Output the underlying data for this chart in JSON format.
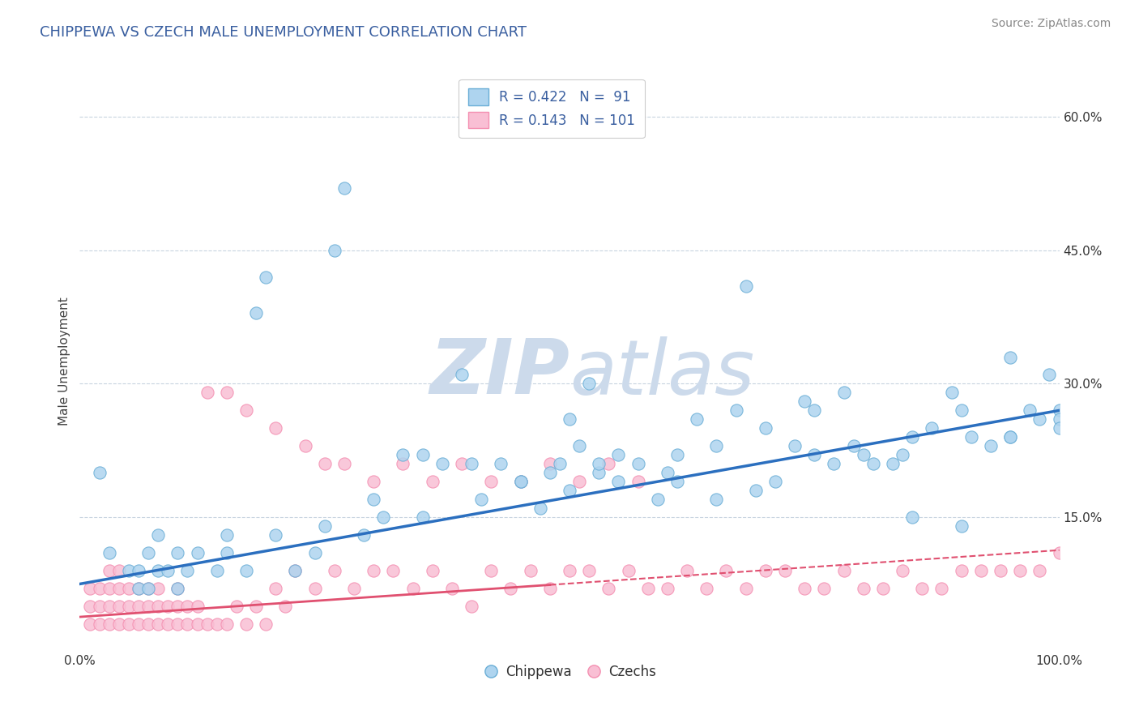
{
  "title": "CHIPPEWA VS CZECH MALE UNEMPLOYMENT CORRELATION CHART",
  "source_text": "Source: ZipAtlas.com",
  "ylabel": "Male Unemployment",
  "xlim": [
    0.0,
    1.0
  ],
  "ylim": [
    0.0,
    0.65
  ],
  "y_tick_labels": [
    "15.0%",
    "30.0%",
    "45.0%",
    "60.0%"
  ],
  "y_ticks": [
    0.15,
    0.3,
    0.45,
    0.6
  ],
  "legend_line1": "R = 0.422   N =  91",
  "legend_line2": "R = 0.143   N = 101",
  "chippewa_marker_face": "#aed4ef",
  "chippewa_marker_edge": "#6aaed6",
  "czech_marker_face": "#f9bfd4",
  "czech_marker_edge": "#f48fb1",
  "trend_chippewa_color": "#2b6fbf",
  "trend_czech_solid_color": "#e05070",
  "trend_czech_dash_color": "#e05070",
  "watermark_color": "#ccdaeb",
  "background_color": "#ffffff",
  "grid_color": "#c8d4e0",
  "chippewa_x": [
    0.02,
    0.03,
    0.05,
    0.06,
    0.07,
    0.07,
    0.08,
    0.09,
    0.1,
    0.11,
    0.12,
    0.14,
    0.15,
    0.17,
    0.18,
    0.19,
    0.2,
    0.22,
    0.24,
    0.26,
    0.27,
    0.29,
    0.31,
    0.33,
    0.35,
    0.37,
    0.39,
    0.41,
    0.43,
    0.45,
    0.47,
    0.49,
    0.5,
    0.51,
    0.52,
    0.53,
    0.55,
    0.57,
    0.59,
    0.61,
    0.63,
    0.65,
    0.67,
    0.69,
    0.71,
    0.73,
    0.75,
    0.77,
    0.79,
    0.81,
    0.83,
    0.85,
    0.87,
    0.89,
    0.91,
    0.93,
    0.95,
    0.97,
    0.99,
    1.0,
    0.48,
    0.53,
    0.61,
    0.68,
    0.74,
    0.78,
    0.84,
    0.9,
    0.95,
    0.98,
    1.0,
    0.3,
    0.4,
    0.5,
    0.6,
    0.7,
    0.8,
    0.9,
    1.0,
    0.35,
    0.45,
    0.55,
    0.65,
    0.75,
    0.85,
    0.95,
    0.25,
    0.15,
    0.1,
    0.08,
    0.06
  ],
  "chippewa_y": [
    0.2,
    0.11,
    0.09,
    0.07,
    0.07,
    0.11,
    0.09,
    0.09,
    0.07,
    0.09,
    0.11,
    0.09,
    0.11,
    0.09,
    0.38,
    0.42,
    0.13,
    0.09,
    0.11,
    0.45,
    0.52,
    0.13,
    0.15,
    0.22,
    0.15,
    0.21,
    0.31,
    0.17,
    0.21,
    0.19,
    0.16,
    0.21,
    0.18,
    0.23,
    0.3,
    0.2,
    0.19,
    0.21,
    0.17,
    0.19,
    0.26,
    0.23,
    0.27,
    0.18,
    0.19,
    0.23,
    0.27,
    0.21,
    0.23,
    0.21,
    0.21,
    0.24,
    0.25,
    0.29,
    0.24,
    0.23,
    0.24,
    0.27,
    0.31,
    0.27,
    0.2,
    0.21,
    0.22,
    0.41,
    0.28,
    0.29,
    0.22,
    0.27,
    0.33,
    0.26,
    0.26,
    0.17,
    0.21,
    0.26,
    0.2,
    0.25,
    0.22,
    0.14,
    0.25,
    0.22,
    0.19,
    0.22,
    0.17,
    0.22,
    0.15,
    0.24,
    0.14,
    0.13,
    0.11,
    0.13,
    0.09
  ],
  "czech_x": [
    0.01,
    0.01,
    0.01,
    0.02,
    0.02,
    0.02,
    0.03,
    0.03,
    0.03,
    0.03,
    0.04,
    0.04,
    0.04,
    0.04,
    0.05,
    0.05,
    0.05,
    0.06,
    0.06,
    0.06,
    0.07,
    0.07,
    0.07,
    0.08,
    0.08,
    0.08,
    0.09,
    0.09,
    0.1,
    0.1,
    0.1,
    0.11,
    0.11,
    0.12,
    0.12,
    0.13,
    0.14,
    0.15,
    0.16,
    0.17,
    0.18,
    0.19,
    0.2,
    0.21,
    0.22,
    0.24,
    0.26,
    0.28,
    0.3,
    0.32,
    0.34,
    0.36,
    0.38,
    0.4,
    0.42,
    0.44,
    0.46,
    0.48,
    0.5,
    0.52,
    0.54,
    0.56,
    0.58,
    0.6,
    0.62,
    0.64,
    0.66,
    0.68,
    0.7,
    0.72,
    0.74,
    0.76,
    0.78,
    0.8,
    0.82,
    0.84,
    0.86,
    0.88,
    0.9,
    0.92,
    0.94,
    0.96,
    0.98,
    1.0,
    0.13,
    0.15,
    0.17,
    0.2,
    0.23,
    0.25,
    0.27,
    0.3,
    0.33,
    0.36,
    0.39,
    0.42,
    0.45,
    0.48,
    0.51,
    0.54,
    0.57
  ],
  "czech_y": [
    0.03,
    0.05,
    0.07,
    0.03,
    0.05,
    0.07,
    0.03,
    0.05,
    0.07,
    0.09,
    0.03,
    0.05,
    0.07,
    0.09,
    0.03,
    0.05,
    0.07,
    0.03,
    0.05,
    0.07,
    0.03,
    0.05,
    0.07,
    0.03,
    0.05,
    0.07,
    0.03,
    0.05,
    0.03,
    0.05,
    0.07,
    0.03,
    0.05,
    0.03,
    0.05,
    0.03,
    0.03,
    0.03,
    0.05,
    0.03,
    0.05,
    0.03,
    0.07,
    0.05,
    0.09,
    0.07,
    0.09,
    0.07,
    0.09,
    0.09,
    0.07,
    0.09,
    0.07,
    0.05,
    0.09,
    0.07,
    0.09,
    0.07,
    0.09,
    0.09,
    0.07,
    0.09,
    0.07,
    0.07,
    0.09,
    0.07,
    0.09,
    0.07,
    0.09,
    0.09,
    0.07,
    0.07,
    0.09,
    0.07,
    0.07,
    0.09,
    0.07,
    0.07,
    0.09,
    0.09,
    0.09,
    0.09,
    0.09,
    0.11,
    0.29,
    0.29,
    0.27,
    0.25,
    0.23,
    0.21,
    0.21,
    0.19,
    0.21,
    0.19,
    0.21,
    0.19,
    0.19,
    0.21,
    0.19,
    0.21,
    0.19
  ]
}
